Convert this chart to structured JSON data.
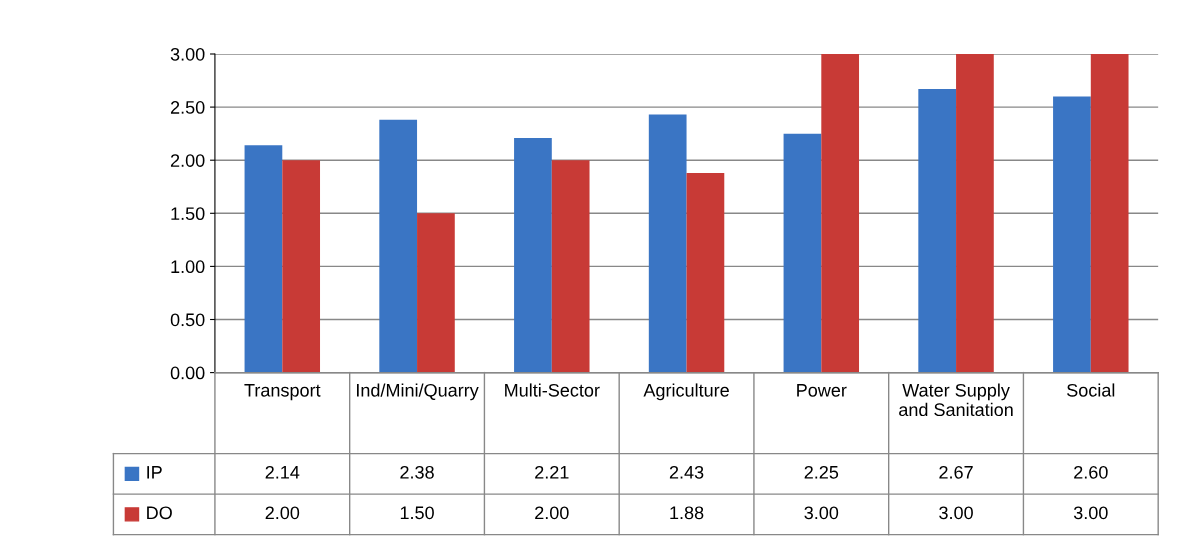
{
  "chart_data": {
    "type": "bar",
    "categories": [
      "Transport",
      "Ind/Mini/Quarry",
      "Multi-Sector",
      "Agriculture",
      "Power",
      "Water Supply and Sanitation",
      "Social"
    ],
    "series": [
      {
        "name": "IP",
        "color": "#3a75c4",
        "values": [
          2.14,
          2.38,
          2.21,
          2.43,
          2.25,
          2.67,
          2.6
        ],
        "value_labels": [
          "2.14",
          "2.38",
          "2.21",
          "2.43",
          "2.25",
          "2.67",
          "2.60"
        ]
      },
      {
        "name": "DO",
        "color": "#c83a36",
        "values": [
          2.0,
          1.5,
          2.0,
          1.88,
          3.0,
          3.0,
          3.0
        ],
        "value_labels": [
          "2.00",
          "1.50",
          "2.00",
          "1.88",
          "3.00",
          "3.00",
          "3.00"
        ]
      }
    ],
    "ylim": [
      0,
      3
    ],
    "yticks": [
      {
        "value": 0,
        "label": "0.00"
      },
      {
        "value": 0.5,
        "label": "0.50"
      },
      {
        "value": 1,
        "label": "1.00"
      },
      {
        "value": 1.5,
        "label": "1.50"
      },
      {
        "value": 2,
        "label": "2.00"
      },
      {
        "value": 2.5,
        "label": "2.50"
      },
      {
        "value": 3,
        "label": "3.00"
      }
    ],
    "grid": "y",
    "legend": "bottom left"
  }
}
